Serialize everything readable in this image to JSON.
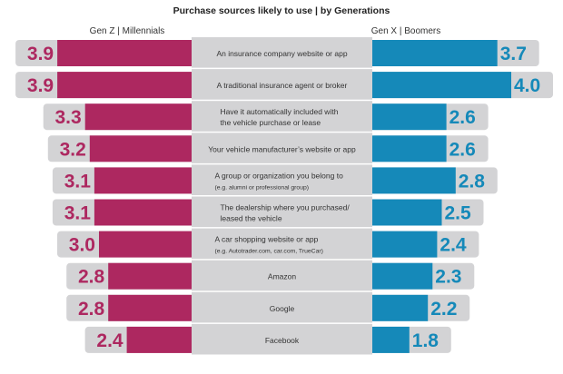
{
  "chart_data": {
    "type": "bar",
    "title": "Purchase sources likely to use | by Generations",
    "categories": [
      [
        "An insurance company website or app"
      ],
      [
        "A traditional insurance agent or broker"
      ],
      [
        "Have it automatically included with",
        "the vehicle purchase or lease"
      ],
      [
        "Your vehicle manufacturer’s website or app"
      ],
      [
        "A group or organization you belong to",
        "(e.g. alumni or professional group)"
      ],
      [
        "The dealership where you purchased/",
        "leased the vehicle"
      ],
      [
        "A car shopping website or app",
        "(e.g. Autotrader.com, car.com, TrueCar)"
      ],
      [
        "Amazon"
      ],
      [
        "Google"
      ],
      [
        "Facebook"
      ]
    ],
    "series": [
      {
        "name": "Gen Z | Millennials",
        "color": "#ad2860",
        "values": [
          3.9,
          3.9,
          3.3,
          3.2,
          3.1,
          3.1,
          3.0,
          2.8,
          2.8,
          2.4
        ]
      },
      {
        "name": "Gen X | Boomers",
        "color": "#1589b9",
        "values": [
          3.7,
          4.0,
          2.6,
          2.6,
          2.8,
          2.5,
          2.4,
          2.3,
          2.2,
          1.8
        ]
      }
    ],
    "value_labels": {
      "left": [
        "3.9",
        "3.9",
        "3.3",
        "3.2",
        "3.1",
        "3.1",
        "3.0",
        "2.8",
        "2.8",
        "2.4"
      ],
      "right": [
        "3.7",
        "4.0",
        "2.6",
        "2.6",
        "2.8",
        "2.5",
        "2.4",
        "2.3",
        "2.2",
        "1.8"
      ]
    },
    "layout_direction": "diverging",
    "axis_visible": false,
    "grid": false,
    "legend": "top"
  }
}
